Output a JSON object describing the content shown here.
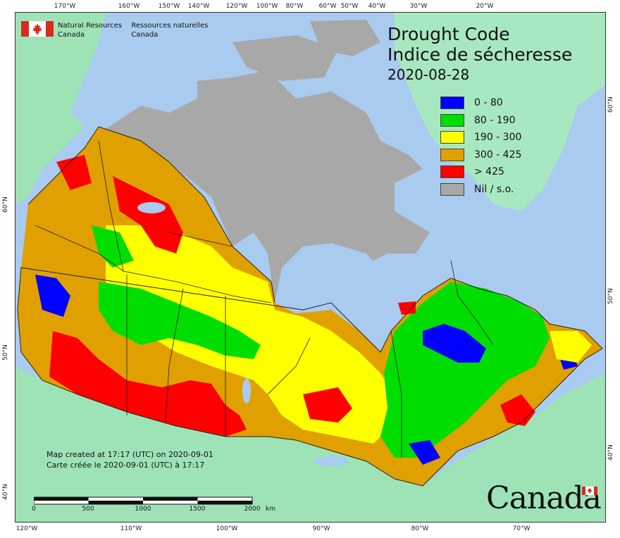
{
  "logo": {
    "dept_en_line1": "Natural Resources",
    "dept_en_line2": "Canada",
    "dept_fr_line1": "Ressources naturelles",
    "dept_fr_line2": "Canada"
  },
  "title": {
    "line1": "Drought Code",
    "line2": "Indice de sécheresse",
    "date": "2020-08-28"
  },
  "legend": [
    {
      "label": "0 - 80",
      "color": "#0000FF"
    },
    {
      "label": "80 - 190",
      "color": "#00DD00"
    },
    {
      "label": "190 - 300",
      "color": "#FFFF00"
    },
    {
      "label": "300 - 425",
      "color": "#E0A000"
    },
    {
      "label": "> 425",
      "color": "#FF0000"
    },
    {
      "label": "Nil / s.o.",
      "color": "#A8A8A8"
    }
  ],
  "created": {
    "en": "Map created at 17:17 (UTC) on 2020-09-01",
    "fr": "Carte créée le 2020-09-01 (UTC) à 17:17"
  },
  "scale": {
    "labels": [
      "0",
      "500",
      "1000",
      "1500",
      "2000"
    ],
    "unit": "km"
  },
  "graticule": {
    "top": [
      "170°W",
      "160°W",
      "150°W",
      "140°W",
      "120°W",
      "100°W",
      "80°W",
      "60°W",
      "50°W",
      "40°W",
      "30°W",
      "20°W"
    ],
    "bottom": [
      "120°W",
      "110°W",
      "100°W",
      "90°W",
      "80°W",
      "70°W"
    ],
    "left": [
      "60°N",
      "50°N",
      "40°N"
    ],
    "right": [
      "60°N",
      "50°N",
      "40°N"
    ]
  },
  "wordmark": "Canada",
  "colors": {
    "ocean": "#A9CBF0",
    "land_other": "#9EE3B6",
    "greenland": "#A8E8C0",
    "nil": "#A8A8A8",
    "border": "#222222"
  }
}
